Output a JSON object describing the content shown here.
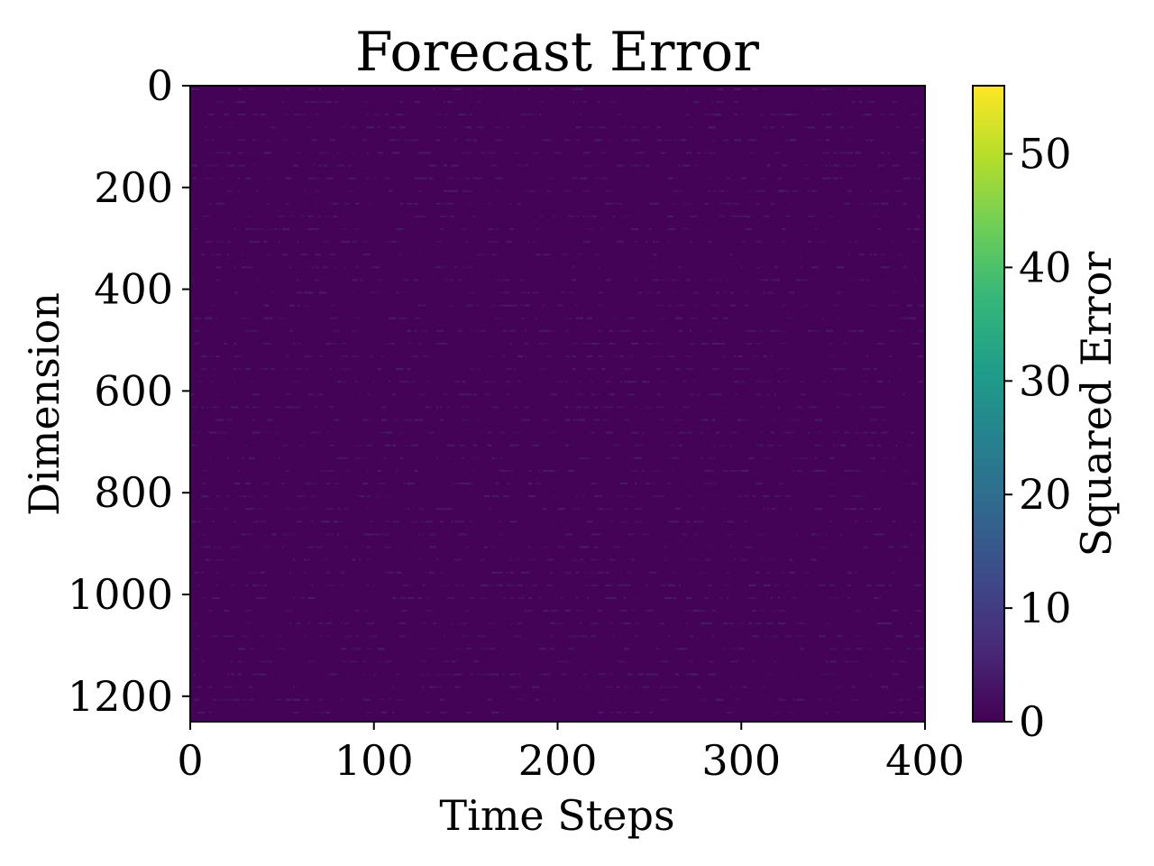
{
  "chart_data": {
    "type": "heatmap",
    "title": "Forecast Error",
    "xlabel": "Time Steps",
    "ylabel": "Dimension",
    "xlim": [
      0,
      400
    ],
    "ylim": [
      0,
      1250
    ],
    "y_inverted": true,
    "x_ticks": [
      "0",
      "100",
      "200",
      "300",
      "400"
    ],
    "y_ticks": [
      "0",
      "200",
      "400",
      "600",
      "800",
      "1000",
      "1200"
    ],
    "colorbar": {
      "label": "Squared Error",
      "min": 0,
      "max": 56,
      "ticks": [
        "0",
        "10",
        "20",
        "30",
        "40",
        "50"
      ],
      "colormap": "viridis",
      "colors": [
        "#440154",
        "#482878",
        "#3e4989",
        "#31688e",
        "#26828e",
        "#1f9e89",
        "#35b779",
        "#6ece58",
        "#b5de2b",
        "#fde725"
      ]
    },
    "background_value": 0.3,
    "periodic_rows_every": 25,
    "typical_streak_value": 3,
    "grid": false,
    "legend": "none"
  }
}
